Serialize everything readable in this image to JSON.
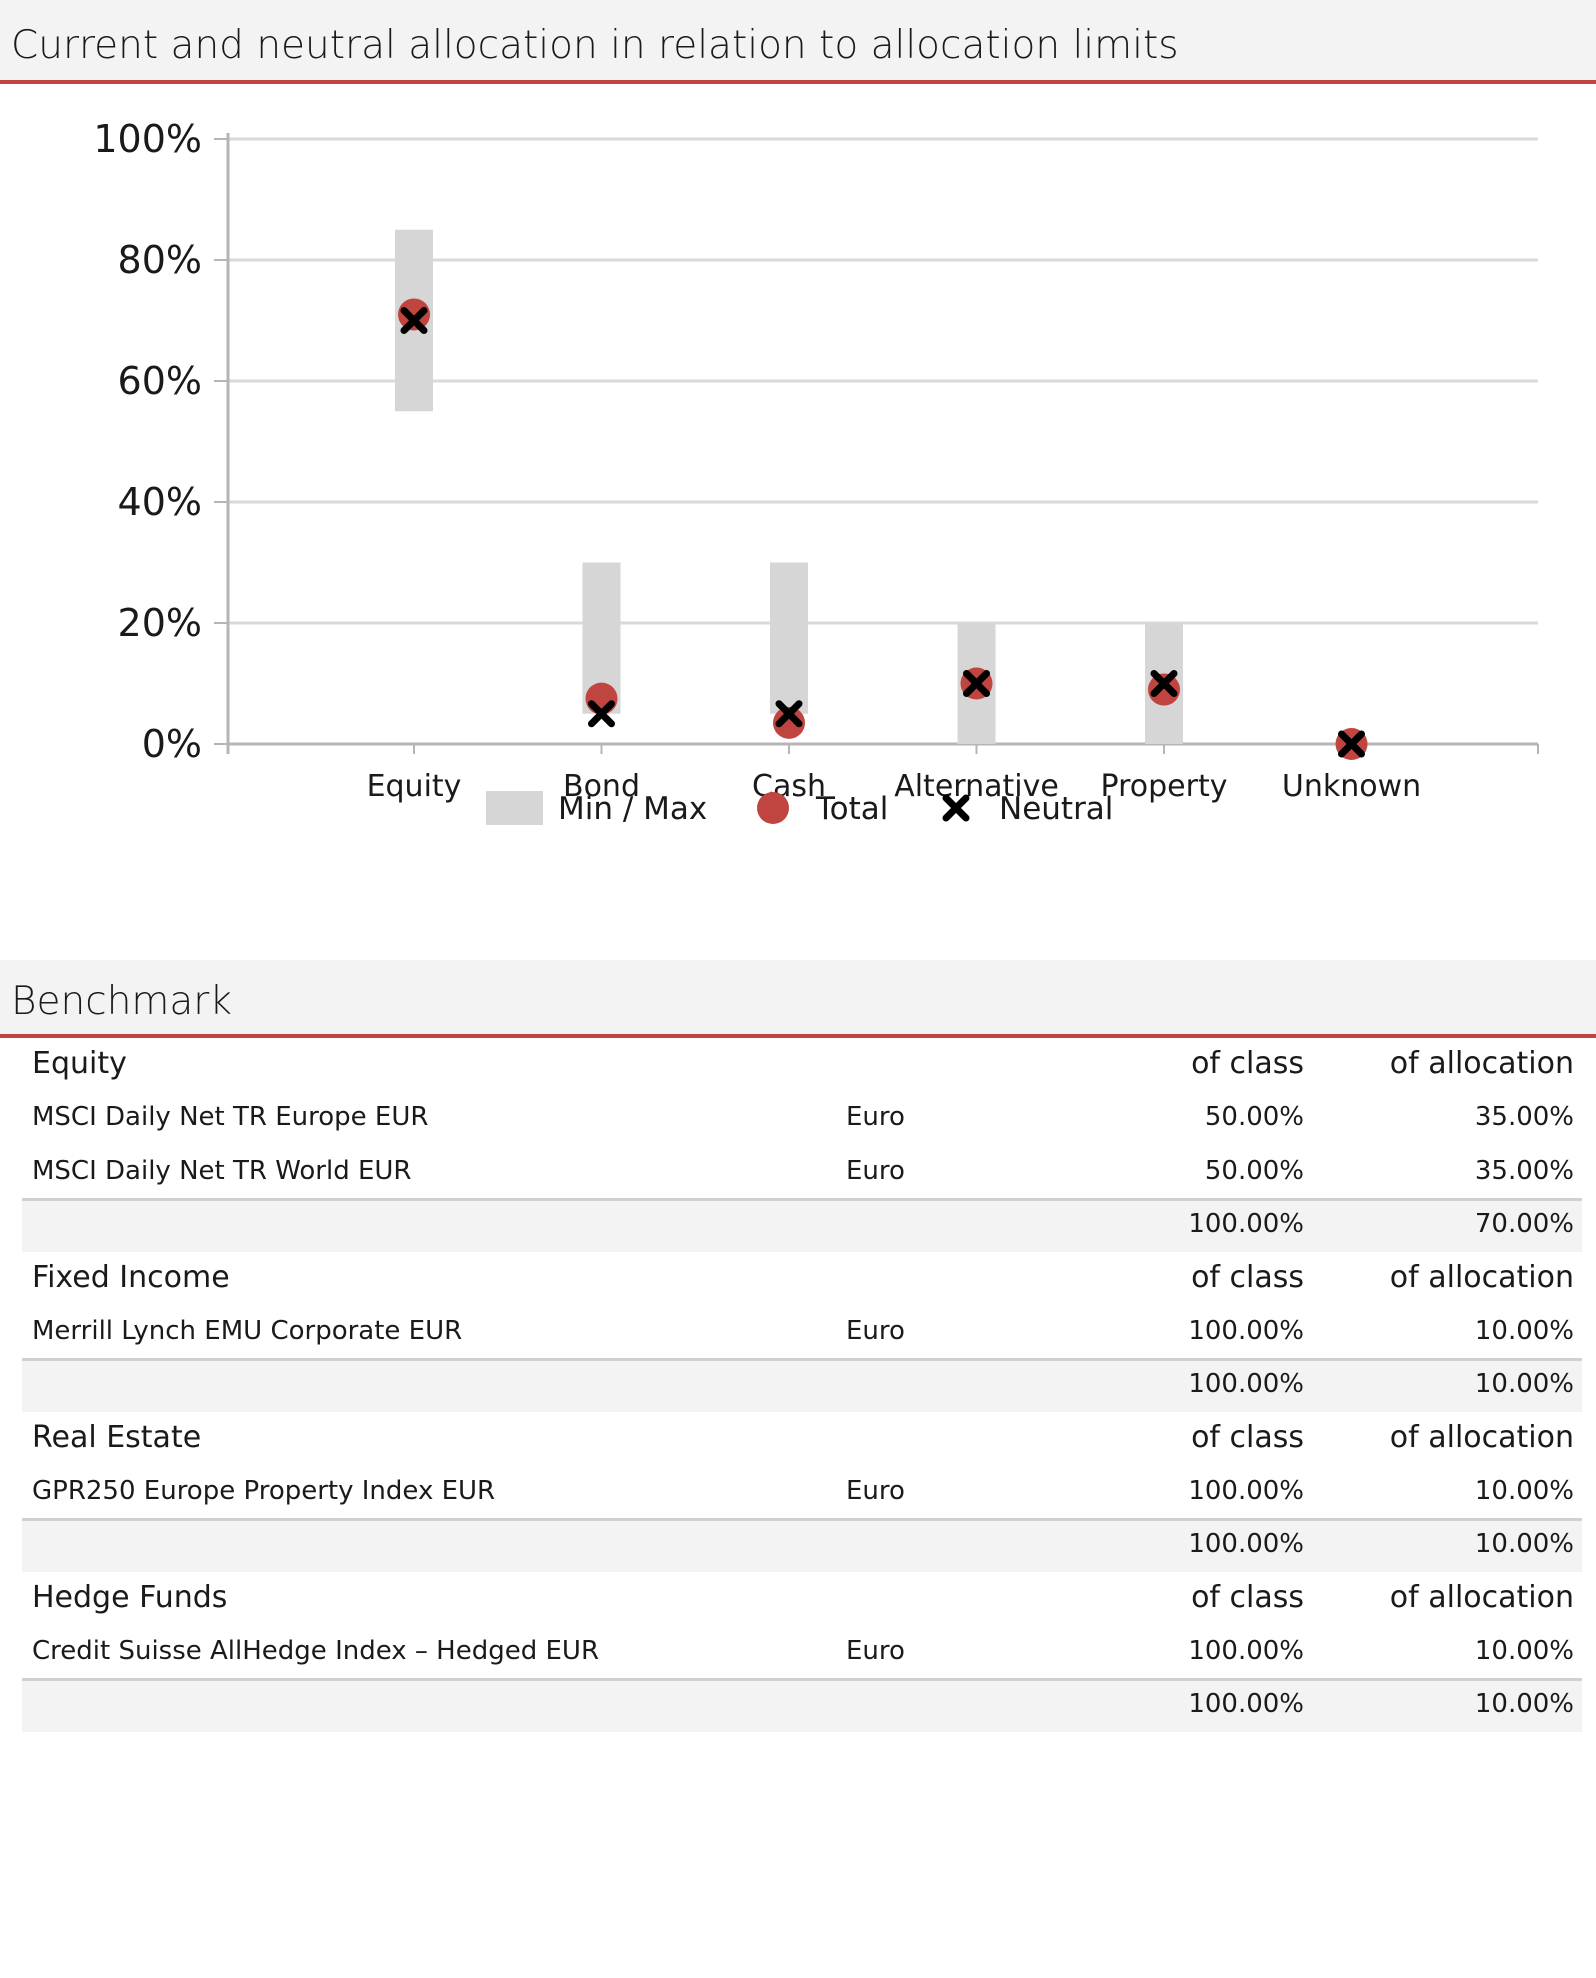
{
  "chart_header": {
    "title": "Current and neutral allocation in relation to allocation limits"
  },
  "chart_data": {
    "type": "scatter",
    "title": "Current and neutral allocation in relation to allocation limits",
    "categories": [
      "Equity",
      "Bond",
      "Cash",
      "Alternative",
      "Property",
      "Unknown"
    ],
    "y_ticks": [
      "0%",
      "20%",
      "40%",
      "60%",
      "80%",
      "100%"
    ],
    "ylim": [
      0,
      100
    ],
    "grid": true,
    "series": [
      {
        "name": "Min / Max",
        "kind": "range",
        "min": [
          55,
          5,
          5,
          0,
          0,
          null
        ],
        "max": [
          85,
          30,
          30,
          20,
          20,
          null
        ]
      },
      {
        "name": "Total",
        "kind": "dot",
        "values": [
          71,
          7.5,
          3.5,
          10,
          9,
          0
        ]
      },
      {
        "name": "Neutral",
        "kind": "cross",
        "values": [
          70,
          5,
          5,
          10,
          10,
          0
        ]
      }
    ],
    "legend": [
      "Min / Max",
      "Total",
      "Neutral"
    ],
    "legend_position": "bottom",
    "colors": {
      "range": "#d6d6d6",
      "total": "#c0443f",
      "neutral": "#000000",
      "grid": "#d9d9d9",
      "axis": "#b5b5b5"
    }
  },
  "benchmark": {
    "title": "Benchmark",
    "groups": [
      {
        "name": "Equity",
        "class_label": "of class",
        "alloc_label": "of allocation",
        "rows": [
          {
            "name": "MSCI Daily Net TR Europe EUR",
            "currency": "Euro",
            "of_class": "50.00%",
            "of_allocation": "35.00%"
          },
          {
            "name": "MSCI Daily Net TR World EUR",
            "currency": "Euro",
            "of_class": "50.00%",
            "of_allocation": "35.00%"
          }
        ],
        "total": {
          "of_class": "100.00%",
          "of_allocation": "70.00%"
        }
      },
      {
        "name": "Fixed Income",
        "class_label": "of class",
        "alloc_label": "of allocation",
        "rows": [
          {
            "name": "Merrill Lynch EMU Corporate EUR",
            "currency": "Euro",
            "of_class": "100.00%",
            "of_allocation": "10.00%"
          }
        ],
        "total": {
          "of_class": "100.00%",
          "of_allocation": "10.00%"
        }
      },
      {
        "name": "Real Estate",
        "class_label": "of class",
        "alloc_label": "of allocation",
        "rows": [
          {
            "name": "GPR250 Europe Property Index EUR",
            "currency": "Euro",
            "of_class": "100.00%",
            "of_allocation": "10.00%"
          }
        ],
        "total": {
          "of_class": "100.00%",
          "of_allocation": "10.00%"
        }
      },
      {
        "name": "Hedge Funds",
        "class_label": "of class",
        "alloc_label": "of allocation",
        "rows": [
          {
            "name": "Credit Suisse AllHedge Index – Hedged EUR",
            "currency": "Euro",
            "of_class": "100.00%",
            "of_allocation": "10.00%"
          }
        ],
        "total": {
          "of_class": "100.00%",
          "of_allocation": "10.00%"
        }
      }
    ]
  }
}
